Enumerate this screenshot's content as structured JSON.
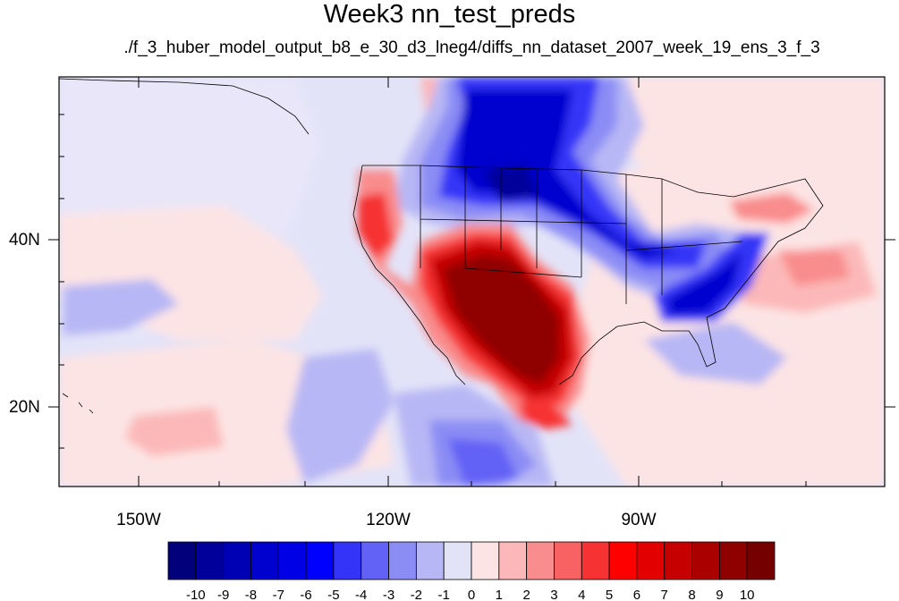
{
  "title": "Week3 nn_test_preds",
  "subtitle": "./f_3_huber_model_output_b8_e_30_d3_lneg4/diffs_nn_dataset_2007_week_19_ens_3_f_3",
  "lon_labels": [
    "150W",
    "120W",
    "90W"
  ],
  "lat_labels": [
    "40N",
    "20N"
  ],
  "colorbar": {
    "labels": [
      "-10",
      "-9",
      "-8",
      "-7",
      "-6",
      "-5",
      "-4",
      "-3",
      "-2",
      "-1",
      "0",
      "1",
      "2",
      "3",
      "4",
      "5",
      "6",
      "7",
      "8",
      "9",
      "10"
    ],
    "colors": [
      "#02007a",
      "#01009a",
      "#0000b4",
      "#0000cf",
      "#0000e6",
      "#0000fe",
      "#3434f8",
      "#6262f6",
      "#8c8cf5",
      "#b7b7f5",
      "#e3e3f8",
      "#fde4e4",
      "#fcb8b8",
      "#f98c8c",
      "#f86262",
      "#f63232",
      "#fe0000",
      "#e20000",
      "#c60000",
      "#ab0000",
      "#8f0000",
      "#750000"
    ]
  },
  "map_legend": {
    "type": "filled-contour",
    "domain_lon": [
      -160,
      -59
    ],
    "domain_lat": [
      10,
      58
    ],
    "regions": "western US warm anomaly, northern plains and southeast US cold anomaly"
  }
}
